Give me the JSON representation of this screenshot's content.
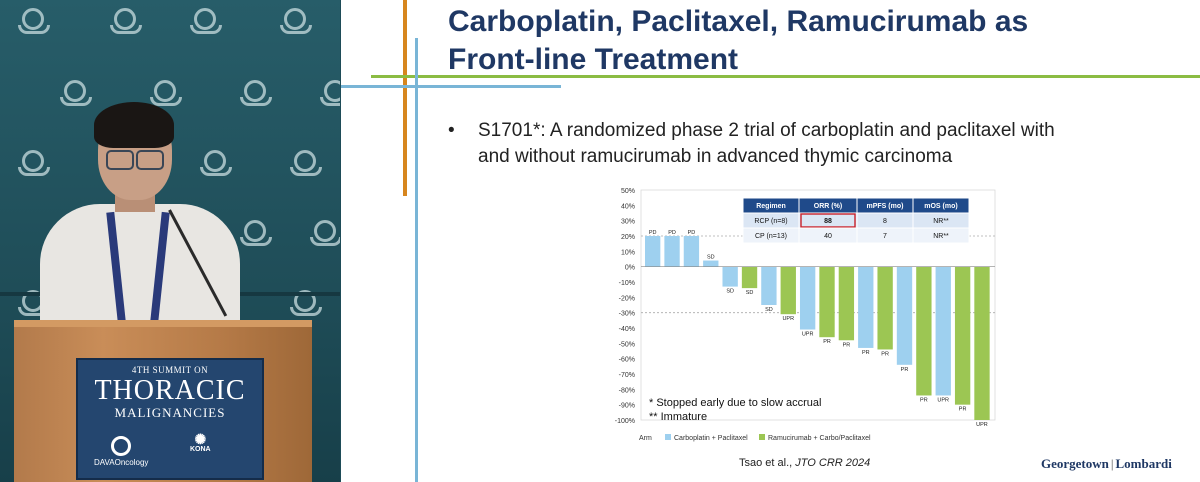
{
  "slide": {
    "title_line1": "Carboplatin, Paclitaxel, Ramucirumab as",
    "title_line2": "Front-line Treatment",
    "bullet_symbol": "•",
    "bullet_text_line1": "S1701*: A randomized phase 2 trial of carboplatin and paclitaxel with",
    "bullet_text_line2": "and without ramucirumab in advanced thymic carcinoma",
    "citation_authors": "Tsao et al., ",
    "citation_journal": "JTO CRR 2024",
    "brand_left": "Georgetown",
    "brand_sep": "|",
    "brand_right": "Lombardi"
  },
  "podium_sign": {
    "top": "4TH SUMMIT ON",
    "main": "THORACIC",
    "sub": "MALIGNANCIES",
    "left_logo": "DAVAOncology",
    "right_logo": "KONA"
  },
  "colors": {
    "carbo_paclitaxel": "#9ed0ef",
    "ramucirumab": "#9cc653",
    "title": "#1f3864",
    "table_header": "#1f4a8a",
    "highlight": "#c8202a"
  },
  "chart_data": {
    "type": "bar",
    "title": "",
    "ylim": [
      -100,
      50
    ],
    "yticks": [
      50,
      40,
      30,
      20,
      10,
      0,
      -10,
      -20,
      -30,
      -40,
      -50,
      -60,
      -70,
      -80,
      -90,
      -100
    ],
    "y_tick_suffix": "%",
    "reference_lines": [
      20,
      -30
    ],
    "bars": [
      {
        "value": 20,
        "arm": "CP",
        "label": "PD"
      },
      {
        "value": 20,
        "arm": "CP",
        "label": "PD"
      },
      {
        "value": 20,
        "arm": "CP",
        "label": "PD"
      },
      {
        "value": 4,
        "arm": "CP",
        "label": "SD"
      },
      {
        "value": -13,
        "arm": "CP",
        "label": "SD"
      },
      {
        "value": -14,
        "arm": "RCP",
        "label": "SD"
      },
      {
        "value": -25,
        "arm": "CP",
        "label": "SD"
      },
      {
        "value": -31,
        "arm": "RCP",
        "label": "UPR"
      },
      {
        "value": -41,
        "arm": "CP",
        "label": "UPR"
      },
      {
        "value": -46,
        "arm": "RCP",
        "label": "PR"
      },
      {
        "value": -48,
        "arm": "RCP",
        "label": "PR"
      },
      {
        "value": -53,
        "arm": "CP",
        "label": "PR"
      },
      {
        "value": -54,
        "arm": "RCP",
        "label": "PR"
      },
      {
        "value": -64,
        "arm": "CP",
        "label": "PR"
      },
      {
        "value": -84,
        "arm": "RCP",
        "label": "PR"
      },
      {
        "value": -84,
        "arm": "CP",
        "label": "UPR"
      },
      {
        "value": -90,
        "arm": "RCP",
        "label": "PR"
      },
      {
        "value": -100,
        "arm": "RCP",
        "label": "UPR"
      }
    ],
    "legend": {
      "title": "Arm",
      "entries": [
        {
          "arm": "CP",
          "label": "Carboplatin + Paclitaxel"
        },
        {
          "arm": "RCP",
          "label": "Ramucirumab + Carbo/Paclitaxel"
        }
      ]
    },
    "table": {
      "headers": [
        "Regimen",
        "ORR (%)",
        "mPFS (mo)",
        "mOS (mo)"
      ],
      "rows": [
        [
          "RCP (n=8)",
          "88",
          "8",
          "NR**"
        ],
        [
          "CP (n=13)",
          "40",
          "7",
          "NR**"
        ]
      ],
      "highlighted_cell": [
        0,
        1
      ]
    },
    "footnotes": [
      "* Stopped early due to slow accrual",
      "** Immature"
    ]
  }
}
